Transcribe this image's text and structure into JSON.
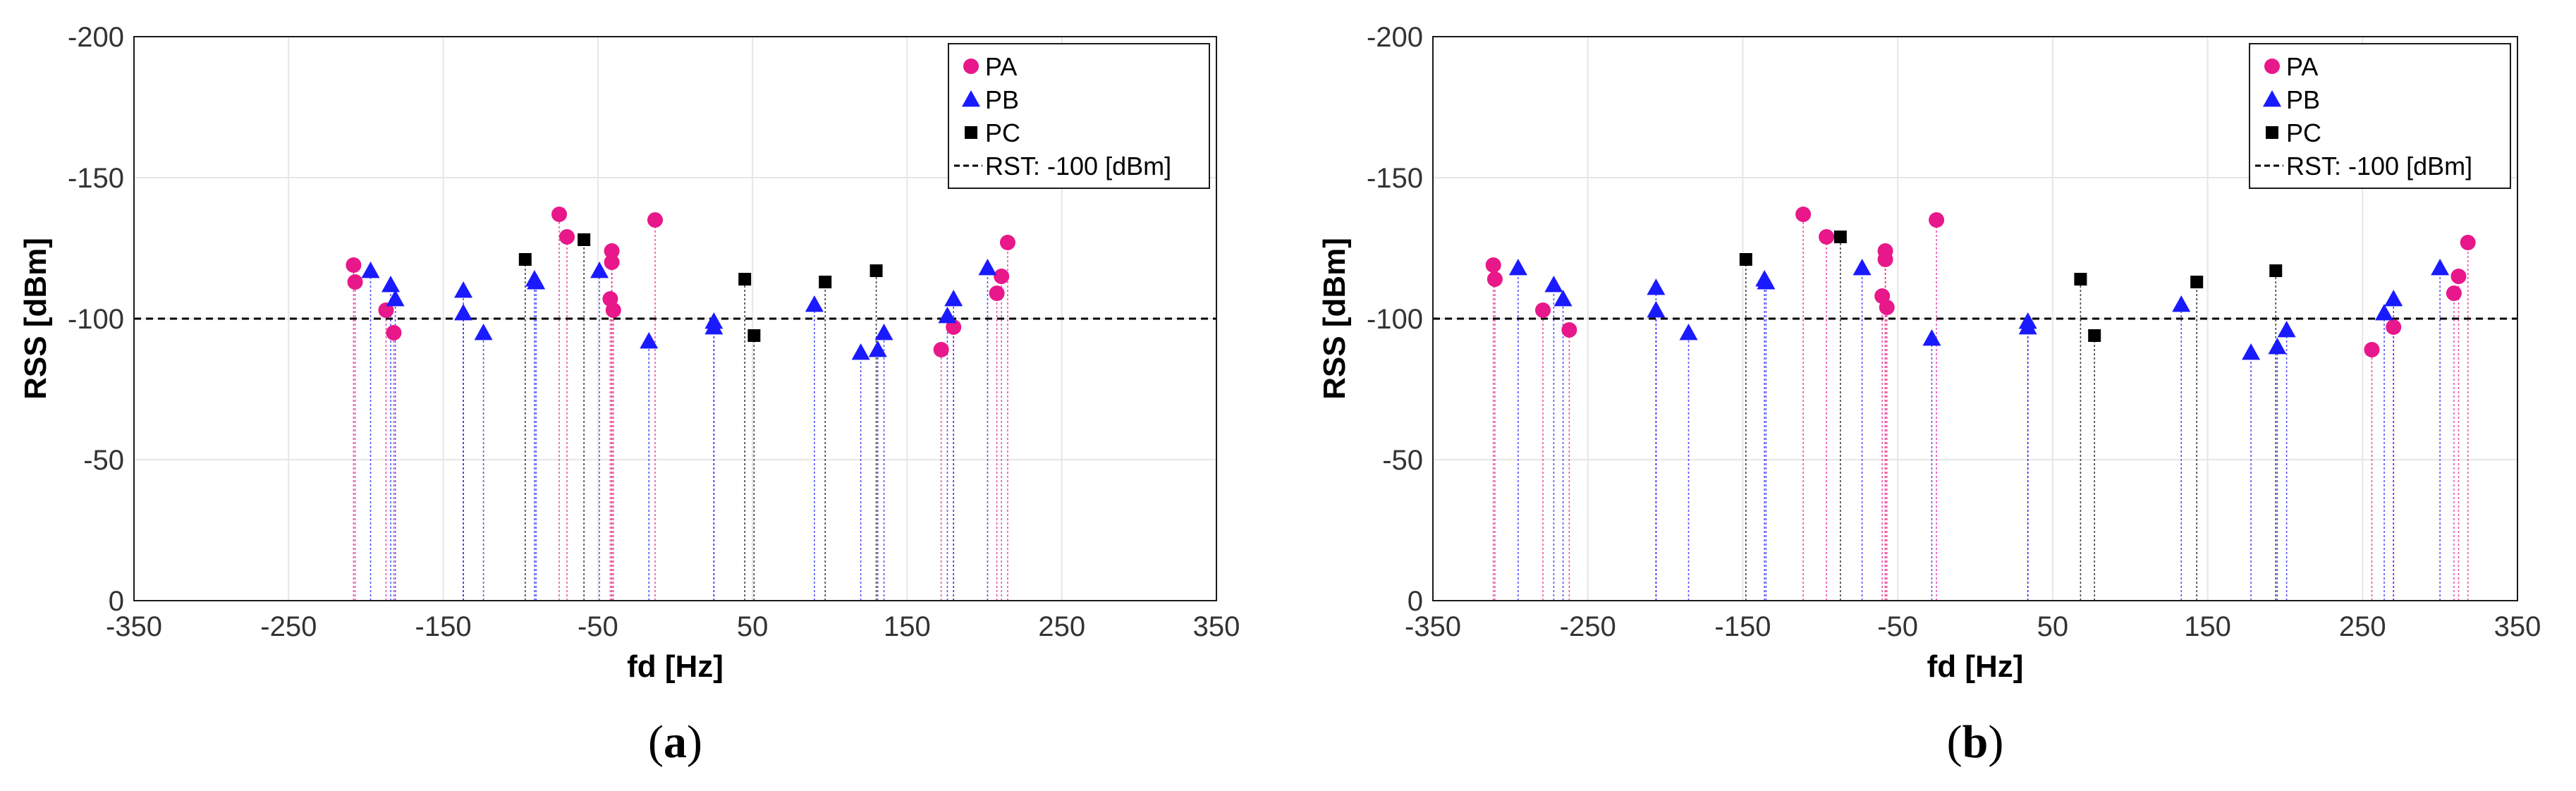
{
  "chart_data": [
    {
      "type": "scatter",
      "panel_label": "a",
      "xlabel": "fd [Hz]",
      "ylabel": "RSS [dBm]",
      "xlim": [
        -350,
        350
      ],
      "ylim": [
        0,
        -200
      ],
      "x_ticks": [
        "-350",
        "-250",
        "-150",
        "-50",
        "50",
        "150",
        "250",
        "350"
      ],
      "y_ticks": [
        "-200",
        "-150",
        "-100",
        "-50",
        "0"
      ],
      "grid": true,
      "legend_position": "top-right",
      "threshold": {
        "value": -100,
        "label": "RST: -100 [dBm]"
      },
      "series": [
        {
          "name": "PA",
          "color": "#e8178a",
          "marker": "circle",
          "points": [
            [
              -208,
              -119
            ],
            [
              -207,
              -113
            ],
            [
              -187,
              -103
            ],
            [
              -182,
              -95
            ],
            [
              -75,
              -137
            ],
            [
              -70,
              -129
            ],
            [
              -41,
              -124
            ],
            [
              -41,
              -120
            ],
            [
              -42,
              -107
            ],
            [
              -40,
              -103
            ],
            [
              -13,
              -135
            ],
            [
              172,
              -89
            ],
            [
              180,
              -97
            ],
            [
              208,
              -109
            ],
            [
              211,
              -115
            ],
            [
              215,
              -127
            ]
          ]
        },
        {
          "name": "PB",
          "color": "#1a1aff",
          "marker": "triangle",
          "points": [
            [
              -197,
              -117
            ],
            [
              -184,
              -112
            ],
            [
              -181,
              -107
            ],
            [
              -137,
              -110
            ],
            [
              -137,
              -102
            ],
            [
              -124,
              -95
            ],
            [
              -91,
              -114
            ],
            [
              -90,
              -113
            ],
            [
              -49,
              -117
            ],
            [
              -17,
              -92
            ],
            [
              25,
              -99
            ],
            [
              25,
              -97
            ],
            [
              90,
              -105
            ],
            [
              120,
              -88
            ],
            [
              131,
              -89
            ],
            [
              135,
              -95
            ],
            [
              176,
              -101
            ],
            [
              180,
              -107
            ],
            [
              202,
              -118
            ]
          ]
        },
        {
          "name": "PC",
          "color": "#000000",
          "marker": "square",
          "points": [
            [
              -97,
              -121
            ],
            [
              -59,
              -128
            ],
            [
              45,
              -114
            ],
            [
              51,
              -94
            ],
            [
              97,
              -113
            ],
            [
              130,
              -117
            ]
          ]
        }
      ]
    },
    {
      "type": "scatter",
      "panel_label": "b",
      "xlabel": "fd [Hz]",
      "ylabel": "RSS [dBm]",
      "xlim": [
        -350,
        350
      ],
      "ylim": [
        0,
        -200
      ],
      "x_ticks": [
        "-350",
        "-250",
        "-150",
        "-50",
        "50",
        "150",
        "250",
        "350"
      ],
      "y_ticks": [
        "-200",
        "-150",
        "-100",
        "-50",
        "0"
      ],
      "grid": true,
      "legend_position": "top-right",
      "threshold": {
        "value": -100,
        "label": "RST: -100 [dBm]"
      },
      "series": [
        {
          "name": "PA",
          "color": "#e8178a",
          "marker": "circle",
          "points": [
            [
              -311,
              -119
            ],
            [
              -310,
              -114
            ],
            [
              -279,
              -103
            ],
            [
              -262,
              -96
            ],
            [
              -111,
              -137
            ],
            [
              -96,
              -129
            ],
            [
              -58,
              -124
            ],
            [
              -58,
              -121
            ],
            [
              -60,
              -108
            ],
            [
              -57,
              -104
            ],
            [
              -25,
              -135
            ],
            [
              256,
              -89
            ],
            [
              270,
              -97
            ],
            [
              309,
              -109
            ],
            [
              312,
              -115
            ],
            [
              318,
              -127
            ]
          ]
        },
        {
          "name": "PB",
          "color": "#1a1aff",
          "marker": "triangle",
          "points": [
            [
              -295,
              -118
            ],
            [
              -272,
              -112
            ],
            [
              -266,
              -107
            ],
            [
              -206,
              -111
            ],
            [
              -206,
              -103
            ],
            [
              -185,
              -95
            ],
            [
              -136,
              -114
            ],
            [
              -135,
              -113
            ],
            [
              -73,
              -118
            ],
            [
              -28,
              -93
            ],
            [
              34,
              -99
            ],
            [
              34,
              -97
            ],
            [
              133,
              -105
            ],
            [
              178,
              -88
            ],
            [
              195,
              -90
            ],
            [
              201,
              -96
            ],
            [
              264,
              -102
            ],
            [
              270,
              -107
            ],
            [
              300,
              -118
            ]
          ]
        },
        {
          "name": "PC",
          "color": "#000000",
          "marker": "square",
          "points": [
            [
              -148,
              -121
            ],
            [
              -87,
              -129
            ],
            [
              68,
              -114
            ],
            [
              77,
              -94
            ],
            [
              143,
              -113
            ],
            [
              194,
              -117
            ]
          ]
        }
      ]
    }
  ]
}
